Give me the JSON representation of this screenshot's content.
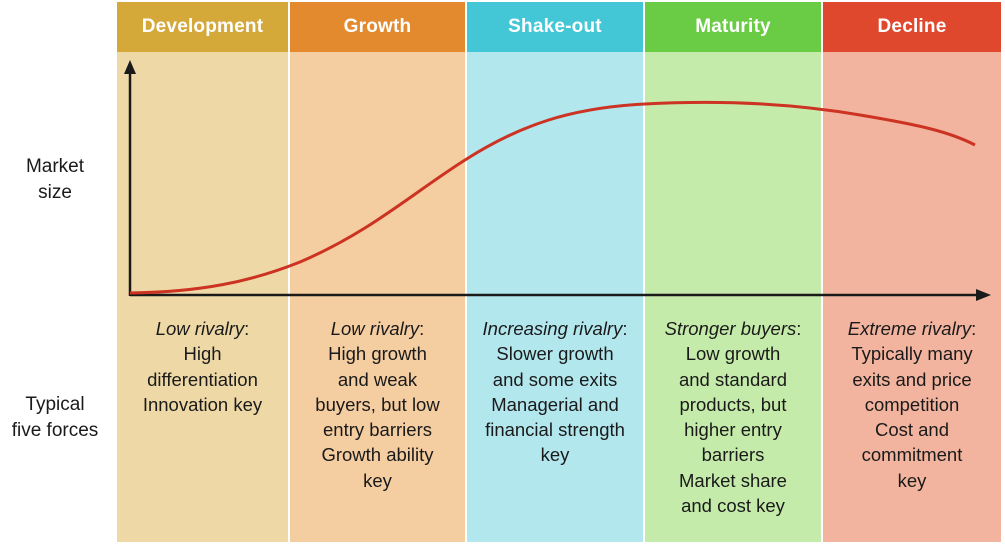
{
  "labels": {
    "market_size": [
      "Market",
      "size"
    ],
    "five_forces": [
      "Typical",
      "five forces"
    ]
  },
  "stages": [
    {
      "name": "Development",
      "header_color": "#d4a93a",
      "body_color": "#eed9a6",
      "rivalry": "Low rivalry",
      "lines": [
        "High",
        "differentiation",
        "Innovation key"
      ]
    },
    {
      "name": "Growth",
      "header_color": "#e38a2f",
      "body_color": "#f4cda1",
      "rivalry": "Low rivalry",
      "lines": [
        "High growth",
        "and weak",
        "buyers, but low",
        "entry barriers",
        "Growth ability",
        "key"
      ]
    },
    {
      "name": "Shake-out",
      "header_color": "#43c6d6",
      "body_color": "#b3e7ee",
      "rivalry": "Increasing rivalry",
      "lines": [
        "Slower growth",
        "and some exits",
        "Managerial and",
        "financial strength",
        "key"
      ]
    },
    {
      "name": "Maturity",
      "header_color": "#6acc45",
      "body_color": "#c5ebaa",
      "rivalry": "Stronger buyers",
      "lines": [
        "Low growth",
        "and standard",
        "products, but",
        "higher entry",
        "barriers",
        "Market share",
        "and cost key"
      ]
    },
    {
      "name": "Decline",
      "header_color": "#e0482e",
      "body_color": "#f2b49f",
      "rivalry": "Extreme rivalry",
      "lines": [
        "Typically many",
        "exits and price",
        "competition",
        "Cost and",
        "commitment",
        "key"
      ]
    }
  ],
  "colors": {
    "curve": "#cc3322",
    "axis": "#1a1a1a"
  }
}
